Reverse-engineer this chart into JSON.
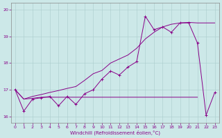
{
  "xlabel": "Windchill (Refroidissement éolien,°C)",
  "bg_color": "#cce8e8",
  "line_color": "#880088",
  "xlim": [
    -0.5,
    23.5
  ],
  "ylim": [
    15.75,
    20.25
  ],
  "yticks": [
    16,
    17,
    18,
    19,
    20
  ],
  "xticks": [
    0,
    1,
    2,
    3,
    4,
    5,
    6,
    7,
    8,
    9,
    10,
    11,
    12,
    13,
    14,
    15,
    16,
    17,
    18,
    19,
    20,
    21,
    22,
    23
  ],
  "line1_x": [
    0,
    1,
    2,
    3,
    4,
    5,
    6,
    7,
    8,
    9,
    10,
    11,
    12,
    13,
    14,
    15,
    16,
    17,
    18,
    19,
    20,
    21,
    22,
    23
  ],
  "line1_y": [
    17.0,
    16.2,
    16.65,
    16.7,
    16.75,
    16.4,
    16.75,
    16.45,
    16.85,
    17.0,
    17.4,
    17.7,
    17.55,
    17.85,
    18.05,
    19.75,
    19.25,
    19.35,
    19.15,
    19.5,
    19.5,
    18.75,
    16.05,
    16.9
  ],
  "line2_x": [
    0,
    1,
    2,
    3,
    4,
    5,
    6,
    7,
    8,
    9,
    10,
    11,
    12,
    13,
    14,
    15,
    16,
    17,
    18,
    19,
    20,
    21
  ],
  "line2_y": [
    17.0,
    16.65,
    16.68,
    16.72,
    16.72,
    16.72,
    16.72,
    16.72,
    16.72,
    16.72,
    16.72,
    16.72,
    16.72,
    16.72,
    16.72,
    16.72,
    16.72,
    16.72,
    16.72,
    16.72,
    16.72,
    16.72
  ],
  "line3_x": [
    0,
    1,
    2,
    3,
    4,
    5,
    6,
    7,
    8,
    9,
    10,
    11,
    12,
    13,
    14,
    15,
    16,
    17,
    18,
    19,
    20,
    21,
    22,
    23
  ],
  "line3_y": [
    17.0,
    16.65,
    16.75,
    16.82,
    16.9,
    16.97,
    17.05,
    17.12,
    17.35,
    17.6,
    17.72,
    18.0,
    18.15,
    18.3,
    18.55,
    18.9,
    19.15,
    19.35,
    19.45,
    19.5,
    19.52,
    19.5,
    19.5,
    19.5
  ]
}
